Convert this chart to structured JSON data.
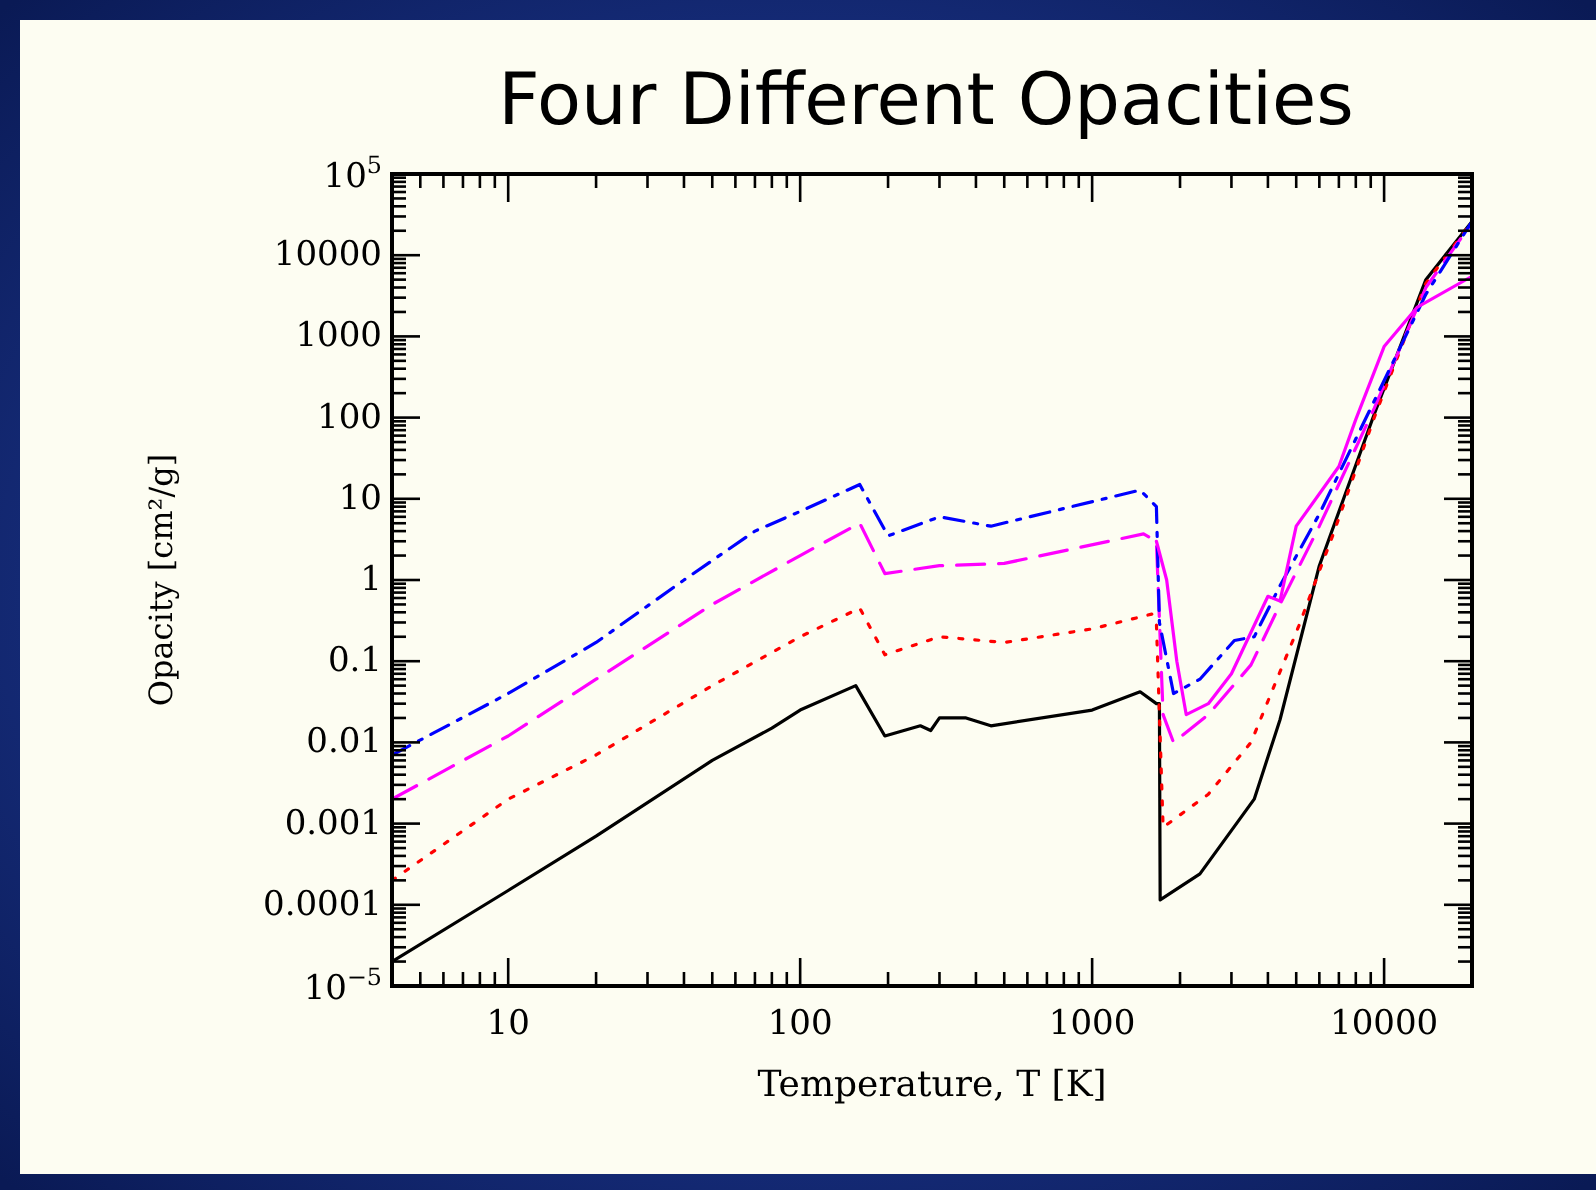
{
  "chart_data": {
    "type": "line",
    "title": "Four Different Opacities",
    "xlabel": "Temperature, T [K]",
    "ylabel": "Opacity [cm²/g]",
    "log": "xy",
    "grid": false,
    "xlim": [
      4,
      20000
    ],
    "ylim": [
      1e-05,
      100000
    ],
    "xticks": [
      {
        "value": 4,
        "label": null
      },
      {
        "value": 5,
        "label": null
      },
      {
        "value": 6,
        "label": null
      },
      {
        "value": 7,
        "label": null
      },
      {
        "value": 8,
        "label": null
      },
      {
        "value": 9,
        "label": null
      },
      10,
      {
        "value": 20,
        "label": null
      },
      {
        "value": 30,
        "label": null
      },
      {
        "value": 40,
        "label": null
      },
      {
        "value": 50,
        "label": null
      },
      {
        "value": 60,
        "label": null
      },
      {
        "value": 70,
        "label": null
      },
      {
        "value": 80,
        "label": null
      },
      {
        "value": 90,
        "label": null
      },
      100,
      {
        "value": 200,
        "label": null
      },
      {
        "value": 300,
        "label": null
      },
      {
        "value": 400,
        "label": null
      },
      {
        "value": 500,
        "label": null
      },
      {
        "value": 600,
        "label": null
      },
      {
        "value": 700,
        "label": null
      },
      {
        "value": 800,
        "label": null
      },
      {
        "value": 900,
        "label": null
      },
      1000,
      {
        "value": 2000,
        "label": null
      },
      {
        "value": 3000,
        "label": null
      },
      {
        "value": 4000,
        "label": null
      },
      {
        "value": 5000,
        "label": null
      },
      {
        "value": 6000,
        "label": null
      },
      {
        "value": 7000,
        "label": null
      },
      {
        "value": 8000,
        "label": null
      },
      {
        "value": 9000,
        "label": null
      },
      10000,
      {
        "value": 20000,
        "label": null
      }
    ],
    "yticks": [
      {
        "value": 1e-05,
        "label": "10$^{−5}$"
      },
      {
        "value": 0.0001,
        "label": "0.0001"
      },
      {
        "value": 0.001,
        "label": "0.001"
      },
      {
        "value": 0.01,
        "label": "0.01"
      },
      {
        "value": 0.1,
        "label": "0.1"
      },
      {
        "value": 1,
        "label": "1"
      },
      {
        "value": 10,
        "label": "10"
      },
      {
        "value": 100,
        "label": "100"
      },
      {
        "value": 1000,
        "label": "1000"
      },
      {
        "value": 10000,
        "label": "10000"
      },
      {
        "value": 100000,
        "label": "10$^{5}$"
      }
    ],
    "series": [
      {
        "color": "#000000",
        "line_style": "solid",
        "x": [
          4,
          10,
          20,
          50,
          80,
          100,
          155,
          195,
          258,
          280,
          300,
          370,
          450,
          1000,
          1460,
          1660,
          1700,
          1710,
          2340,
          3590,
          4400,
          6000,
          9250,
          13900,
          20000
        ],
        "values": [
          2e-05,
          0.00015,
          0.0007,
          0.006,
          0.015,
          0.025,
          0.05,
          0.012,
          0.016,
          0.014,
          0.02,
          0.02,
          0.016,
          0.025,
          0.042,
          0.03,
          0.03,
          0.000115,
          0.00024,
          0.002,
          0.019,
          1.5,
          110,
          5000,
          26000
        ]
      },
      {
        "color": "#ff0000",
        "line_style": "dotted",
        "x": [
          4,
          10,
          20,
          50,
          100,
          160,
          195,
          300,
          500,
          1000,
          1600,
          1660,
          1750,
          2500,
          3500,
          5100,
          6700,
          9250,
          13900,
          20000
        ],
        "values": [
          0.0002,
          0.002,
          0.007,
          0.05,
          0.2,
          0.45,
          0.12,
          0.2,
          0.17,
          0.25,
          0.38,
          0.3,
          0.0009,
          0.0023,
          0.01,
          0.27,
          3.7,
          100,
          4500,
          26000
        ]
      },
      {
        "color": "#ff00ff",
        "line_style": "dashed",
        "x": [
          4,
          10,
          20,
          50,
          100,
          160,
          195,
          300,
          500,
          1500,
          1660,
          1750,
          1900,
          2500,
          3500,
          4400,
          6000,
          9250,
          13900,
          20000
        ],
        "values": [
          0.002,
          0.012,
          0.06,
          0.5,
          2,
          5,
          1.2,
          1.5,
          1.6,
          3.7,
          3,
          0.022,
          0.01,
          0.022,
          0.09,
          0.5,
          4.6,
          130,
          4000,
          25000
        ]
      },
      {
        "color": "#0000ff",
        "line_style": "dashdot",
        "x": [
          4,
          10,
          20,
          40,
          70,
          100,
          160,
          200,
          300,
          450,
          1460,
          1660,
          1700,
          1900,
          2340,
          3070,
          3590,
          4400,
          6000,
          9250,
          13900,
          20000
        ],
        "values": [
          0.007,
          0.04,
          0.17,
          1,
          4,
          7,
          15,
          3.5,
          6,
          4.6,
          12.8,
          8,
          0.3,
          0.04,
          0.06,
          0.18,
          0.2,
          0.85,
          6.5,
          160,
          3300,
          26000
        ]
      },
      {
        "color": "#ff00ff",
        "line_style": "solid",
        "x": [
          1660,
          1800,
          1950,
          2100,
          2500,
          3000,
          4000,
          4400,
          5000,
          7000,
          8000,
          10000,
          13000,
          20000
        ],
        "values": [
          3,
          1,
          0.1,
          0.022,
          0.03,
          0.07,
          0.63,
          0.55,
          4.6,
          25,
          95,
          750,
          2300,
          5500
        ]
      }
    ]
  }
}
